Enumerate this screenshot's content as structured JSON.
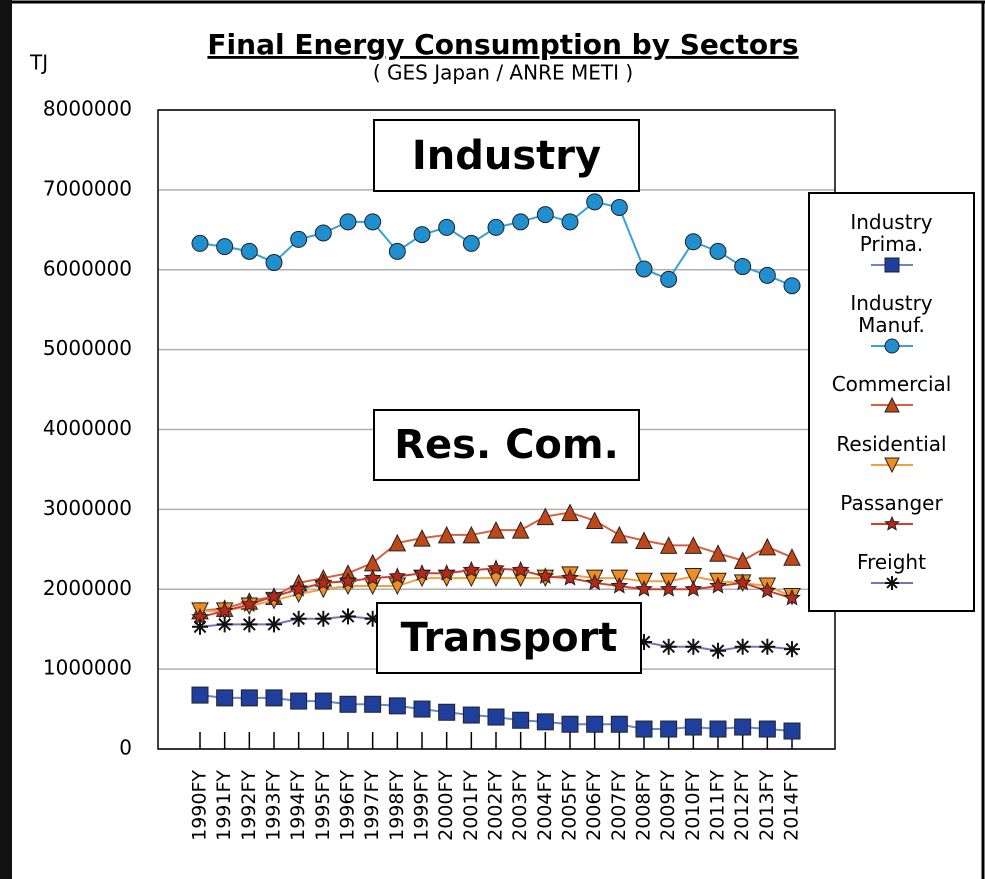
{
  "chart_data": {
    "type": "line",
    "title": "Final Energy Consumption by Sectors",
    "subtitle": "( GES Japan / ANRE METI )",
    "y_label": "TJ",
    "annotations": [
      "Industry",
      "Res. Com.",
      "Transport"
    ],
    "categories": [
      "1990FY",
      "1991FY",
      "1992FY",
      "1993FY",
      "1994FY",
      "1995FY",
      "1996FY",
      "1997FY",
      "1998FY",
      "1999FY",
      "2000FY",
      "2001FY",
      "2002FY",
      "2003FY",
      "2004FY",
      "2005FY",
      "2006FY",
      "2007FY",
      "2008FY",
      "2009FY",
      "2010FY",
      "2011FY",
      "2012FY",
      "2013FY",
      "2014FY"
    ],
    "ylim": [
      0,
      8000000
    ],
    "yticks": [
      0,
      1000000,
      2000000,
      3000000,
      4000000,
      5000000,
      6000000,
      7000000,
      8000000
    ],
    "grid": true,
    "legend": "right",
    "series": [
      {
        "name": "Industry Prima.",
        "color": "#1f3f9f",
        "line_color": "#6a86c8",
        "marker": "square",
        "values": [
          675000,
          640000,
          640000,
          640000,
          600000,
          600000,
          560000,
          560000,
          540000,
          500000,
          460000,
          425000,
          400000,
          360000,
          340000,
          310000,
          310000,
          310000,
          250000,
          250000,
          275000,
          250000,
          275000,
          250000,
          225000
        ]
      },
      {
        "name": "Industry Manuf.",
        "color": "#1f8fd0",
        "line_color": "#3aa0d8",
        "marker": "circle",
        "values": [
          6330000,
          6290000,
          6230000,
          6090000,
          6380000,
          6460000,
          6600000,
          6600000,
          6230000,
          6440000,
          6530000,
          6330000,
          6530000,
          6600000,
          6690000,
          6600000,
          6850000,
          6780000,
          6010000,
          5880000,
          6350000,
          6230000,
          6040000,
          5930000,
          5800000
        ]
      },
      {
        "name": "Commercial",
        "color": "#c04818",
        "line_color": "#d86040",
        "marker": "triangle",
        "values": [
          1730000,
          1760000,
          1850000,
          1910000,
          2080000,
          2140000,
          2200000,
          2330000,
          2580000,
          2640000,
          2680000,
          2680000,
          2740000,
          2740000,
          2910000,
          2960000,
          2860000,
          2680000,
          2610000,
          2550000,
          2550000,
          2450000,
          2360000,
          2530000,
          2400000
        ]
      },
      {
        "name": "Residential",
        "color": "#f08c20",
        "line_color": "#f0a040",
        "marker": "triangle-down",
        "values": [
          1730000,
          1730000,
          1790000,
          1860000,
          1940000,
          2000000,
          2040000,
          2040000,
          2040000,
          2140000,
          2140000,
          2140000,
          2140000,
          2140000,
          2140000,
          2180000,
          2140000,
          2140000,
          2100000,
          2100000,
          2160000,
          2100000,
          2080000,
          2040000,
          1910000
        ]
      },
      {
        "name": "Passanger",
        "color": "#b82818",
        "line_color": "#d04030",
        "marker": "star",
        "values": [
          1650000,
          1730000,
          1810000,
          1910000,
          2000000,
          2080000,
          2100000,
          2140000,
          2160000,
          2200000,
          2200000,
          2240000,
          2260000,
          2240000,
          2160000,
          2140000,
          2080000,
          2040000,
          2000000,
          2000000,
          2000000,
          2040000,
          2080000,
          1980000,
          1890000
        ]
      },
      {
        "name": "Freight",
        "color": "#101010",
        "line_color": "#8070b8",
        "marker": "asterisk",
        "values": [
          1530000,
          1560000,
          1560000,
          1560000,
          1630000,
          1630000,
          1660000,
          1630000,
          1590000,
          1560000,
          1560000,
          1560000,
          1500000,
          1460000,
          1440000,
          1440000,
          1440000,
          1400000,
          1340000,
          1280000,
          1280000,
          1230000,
          1280000,
          1280000,
          1250000
        ]
      }
    ]
  }
}
